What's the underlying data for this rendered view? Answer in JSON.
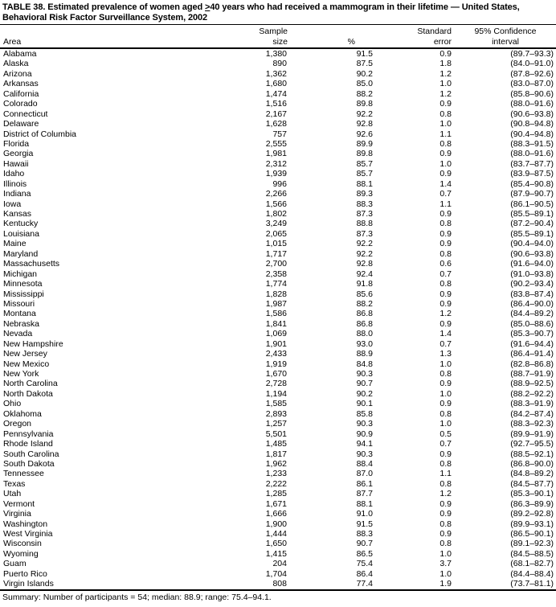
{
  "title": {
    "line1_prefix": "TABLE 38. Estimated prevalence of women aged ",
    "line1_geq": ">",
    "line1_suffix": "40 years who had received a mammogram in their lifetime — United States,",
    "line2": "Behavioral Risk Factor Surveillance System, 2002"
  },
  "table": {
    "headers": {
      "area": "Area",
      "sample_size_line1": "Sample",
      "sample_size_line2": "size",
      "percent": "%",
      "std_error_line1": "Standard",
      "std_error_line2": "error",
      "ci_line1": "95% Confidence",
      "ci_line2": "interval"
    },
    "rows": [
      {
        "area": "Alabama",
        "sample_size": "1,380",
        "percent": "91.5",
        "std_error": "0.9",
        "ci": "(89.7–93.3)"
      },
      {
        "area": "Alaska",
        "sample_size": "890",
        "percent": "87.5",
        "std_error": "1.8",
        "ci": "(84.0–91.0)"
      },
      {
        "area": "Arizona",
        "sample_size": "1,362",
        "percent": "90.2",
        "std_error": "1.2",
        "ci": "(87.8–92.6)"
      },
      {
        "area": "Arkansas",
        "sample_size": "1,680",
        "percent": "85.0",
        "std_error": "1.0",
        "ci": "(83.0–87.0)"
      },
      {
        "area": "California",
        "sample_size": "1,474",
        "percent": "88.2",
        "std_error": "1.2",
        "ci": "(85.8–90.6)"
      },
      {
        "area": "Colorado",
        "sample_size": "1,516",
        "percent": "89.8",
        "std_error": "0.9",
        "ci": "(88.0–91.6)"
      },
      {
        "area": "Connecticut",
        "sample_size": "2,167",
        "percent": "92.2",
        "std_error": "0.8",
        "ci": "(90.6–93.8)"
      },
      {
        "area": "Delaware",
        "sample_size": "1,628",
        "percent": "92.8",
        "std_error": "1.0",
        "ci": "(90.8–94.8)"
      },
      {
        "area": "District of Columbia",
        "sample_size": "757",
        "percent": "92.6",
        "std_error": "1.1",
        "ci": "(90.4–94.8)"
      },
      {
        "area": "Florida",
        "sample_size": "2,555",
        "percent": "89.9",
        "std_error": "0.8",
        "ci": "(88.3–91.5)"
      },
      {
        "area": "Georgia",
        "sample_size": "1,981",
        "percent": "89.8",
        "std_error": "0.9",
        "ci": "(88.0–91.6)"
      },
      {
        "area": "Hawaii",
        "sample_size": "2,312",
        "percent": "85.7",
        "std_error": "1.0",
        "ci": "(83.7–87.7)"
      },
      {
        "area": "Idaho",
        "sample_size": "1,939",
        "percent": "85.7",
        "std_error": "0.9",
        "ci": "(83.9–87.5)"
      },
      {
        "area": "Illinois",
        "sample_size": "996",
        "percent": "88.1",
        "std_error": "1.4",
        "ci": "(85.4–90.8)"
      },
      {
        "area": "Indiana",
        "sample_size": "2,266",
        "percent": "89.3",
        "std_error": "0.7",
        "ci": "(87.9–90.7)"
      },
      {
        "area": "Iowa",
        "sample_size": "1,566",
        "percent": "88.3",
        "std_error": "1.1",
        "ci": "(86.1–90.5)"
      },
      {
        "area": "Kansas",
        "sample_size": "1,802",
        "percent": "87.3",
        "std_error": "0.9",
        "ci": "(85.5–89.1)"
      },
      {
        "area": "Kentucky",
        "sample_size": "3,249",
        "percent": "88.8",
        "std_error": "0.8",
        "ci": "(87.2–90.4)"
      },
      {
        "area": "Louisiana",
        "sample_size": "2,065",
        "percent": "87.3",
        "std_error": "0.9",
        "ci": "(85.5–89.1)"
      },
      {
        "area": "Maine",
        "sample_size": "1,015",
        "percent": "92.2",
        "std_error": "0.9",
        "ci": "(90.4–94.0)"
      },
      {
        "area": "Maryland",
        "sample_size": "1,717",
        "percent": "92.2",
        "std_error": "0.8",
        "ci": "(90.6–93.8)"
      },
      {
        "area": "Massachusetts",
        "sample_size": "2,700",
        "percent": "92.8",
        "std_error": "0.6",
        "ci": "(91.6–94.0)"
      },
      {
        "area": "Michigan",
        "sample_size": "2,358",
        "percent": "92.4",
        "std_error": "0.7",
        "ci": "(91.0–93.8)"
      },
      {
        "area": "Minnesota",
        "sample_size": "1,774",
        "percent": "91.8",
        "std_error": "0.8",
        "ci": "(90.2–93.4)"
      },
      {
        "area": "Mississippi",
        "sample_size": "1,828",
        "percent": "85.6",
        "std_error": "0.9",
        "ci": "(83.8–87.4)"
      },
      {
        "area": "Missouri",
        "sample_size": "1,987",
        "percent": "88.2",
        "std_error": "0.9",
        "ci": "(86.4–90.0)"
      },
      {
        "area": "Montana",
        "sample_size": "1,586",
        "percent": "86.8",
        "std_error": "1.2",
        "ci": "(84.4–89.2)"
      },
      {
        "area": "Nebraska",
        "sample_size": "1,841",
        "percent": "86.8",
        "std_error": "0.9",
        "ci": "(85.0–88.6)"
      },
      {
        "area": "Nevada",
        "sample_size": "1,069",
        "percent": "88.0",
        "std_error": "1.4",
        "ci": "(85.3–90.7)"
      },
      {
        "area": "New Hampshire",
        "sample_size": "1,901",
        "percent": "93.0",
        "std_error": "0.7",
        "ci": "(91.6–94.4)"
      },
      {
        "area": "New Jersey",
        "sample_size": "2,433",
        "percent": "88.9",
        "std_error": "1.3",
        "ci": "(86.4–91.4)"
      },
      {
        "area": "New Mexico",
        "sample_size": "1,919",
        "percent": "84.8",
        "std_error": "1.0",
        "ci": "(82.8–86.8)"
      },
      {
        "area": "New York",
        "sample_size": "1,670",
        "percent": "90.3",
        "std_error": "0.8",
        "ci": "(88.7–91.9)"
      },
      {
        "area": "North Carolina",
        "sample_size": "2,728",
        "percent": "90.7",
        "std_error": "0.9",
        "ci": "(88.9–92.5)"
      },
      {
        "area": "North Dakota",
        "sample_size": "1,194",
        "percent": "90.2",
        "std_error": "1.0",
        "ci": "(88.2–92.2)"
      },
      {
        "area": "Ohio",
        "sample_size": "1,585",
        "percent": "90.1",
        "std_error": "0.9",
        "ci": "(88.3–91.9)"
      },
      {
        "area": "Oklahoma",
        "sample_size": "2,893",
        "percent": "85.8",
        "std_error": "0.8",
        "ci": "(84.2–87.4)"
      },
      {
        "area": "Oregon",
        "sample_size": "1,257",
        "percent": "90.3",
        "std_error": "1.0",
        "ci": "(88.3–92.3)"
      },
      {
        "area": "Pennsylvania",
        "sample_size": "5,501",
        "percent": "90.9",
        "std_error": "0.5",
        "ci": "(89.9–91.9)"
      },
      {
        "area": "Rhode Island",
        "sample_size": "1,485",
        "percent": "94.1",
        "std_error": "0.7",
        "ci": "(92.7–95.5)"
      },
      {
        "area": "South Carolina",
        "sample_size": "1,817",
        "percent": "90.3",
        "std_error": "0.9",
        "ci": "(88.5–92.1)"
      },
      {
        "area": "South Dakota",
        "sample_size": "1,962",
        "percent": "88.4",
        "std_error": "0.8",
        "ci": "(86.8–90.0)"
      },
      {
        "area": "Tennessee",
        "sample_size": "1,233",
        "percent": "87.0",
        "std_error": "1.1",
        "ci": "(84.8–89.2)"
      },
      {
        "area": "Texas",
        "sample_size": "2,222",
        "percent": "86.1",
        "std_error": "0.8",
        "ci": "(84.5–87.7)"
      },
      {
        "area": "Utah",
        "sample_size": "1,285",
        "percent": "87.7",
        "std_error": "1.2",
        "ci": "(85.3–90.1)"
      },
      {
        "area": "Vermont",
        "sample_size": "1,671",
        "percent": "88.1",
        "std_error": "0.9",
        "ci": "(86.3–89.9)"
      },
      {
        "area": "Virginia",
        "sample_size": "1,666",
        "percent": "91.0",
        "std_error": "0.9",
        "ci": "(89.2–92.8)"
      },
      {
        "area": "Washington",
        "sample_size": "1,900",
        "percent": "91.5",
        "std_error": "0.8",
        "ci": "(89.9–93.1)"
      },
      {
        "area": "West Virginia",
        "sample_size": "1,444",
        "percent": "88.3",
        "std_error": "0.9",
        "ci": "(86.5–90.1)"
      },
      {
        "area": "Wisconsin",
        "sample_size": "1,650",
        "percent": "90.7",
        "std_error": "0.8",
        "ci": "(89.1–92.3)"
      },
      {
        "area": "Wyoming",
        "sample_size": "1,415",
        "percent": "86.5",
        "std_error": "1.0",
        "ci": "(84.5–88.5)"
      },
      {
        "area": "Guam",
        "sample_size": "204",
        "percent": "75.4",
        "std_error": "3.7",
        "ci": "(68.1–82.7)"
      },
      {
        "area": "Puerto Rico",
        "sample_size": "1,704",
        "percent": "86.4",
        "std_error": "1.0",
        "ci": "(84.4–88.4)"
      },
      {
        "area": "Virgin Islands",
        "sample_size": "808",
        "percent": "77.4",
        "std_error": "1.9",
        "ci": "(73.7–81.1)"
      }
    ]
  },
  "footer": {
    "summary": "Summary: Number of participants = 54; median: 88.9; range: 75.4–94.1."
  }
}
